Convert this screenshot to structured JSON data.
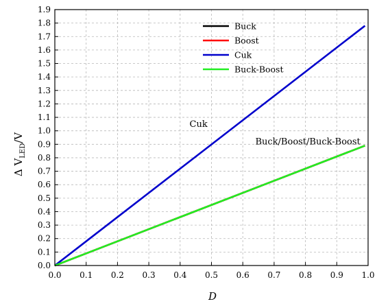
{
  "chart_data": {
    "type": "line",
    "xlabel": "D",
    "ylabel_main": "Δ V",
    "ylabel_sub": "LED",
    "ylabel_unit": "/V",
    "xlim": [
      0.0,
      1.0
    ],
    "ylim": [
      0.0,
      1.9
    ],
    "xticks": [
      "0.0",
      "0.1",
      "0.2",
      "0.3",
      "0.4",
      "0.5",
      "0.6",
      "0.7",
      "0.8",
      "0.9",
      "1.0"
    ],
    "yticks": [
      "0.0",
      "0.1",
      "0.2",
      "0.3",
      "0.4",
      "0.5",
      "0.6",
      "0.7",
      "0.8",
      "0.9",
      "1.0",
      "1.1",
      "1.2",
      "1.3",
      "1.4",
      "1.5",
      "1.6",
      "1.7",
      "1.8",
      "1.9"
    ],
    "grid": true,
    "legend_position": "top-right",
    "series": [
      {
        "name": "Buck",
        "color": "#000000",
        "x": [
          0.0,
          0.99
        ],
        "y": [
          0.0,
          0.89
        ]
      },
      {
        "name": "Boost",
        "color": "#ff0000",
        "x": [
          0.0,
          0.99
        ],
        "y": [
          0.0,
          0.89
        ]
      },
      {
        "name": "Cuk",
        "color": "#0000cc",
        "x": [
          0.0,
          0.99
        ],
        "y": [
          0.0,
          1.78
        ]
      },
      {
        "name": "Buck-Boost",
        "color": "#22ee22",
        "x": [
          0.0,
          0.99
        ],
        "y": [
          0.0,
          0.89
        ]
      }
    ],
    "annotations": [
      {
        "text": "Cuk",
        "x": 0.43,
        "y": 1.03
      },
      {
        "text": "Buck/Boost/Buck-Boost",
        "x": 0.64,
        "y": 0.9
      }
    ]
  }
}
